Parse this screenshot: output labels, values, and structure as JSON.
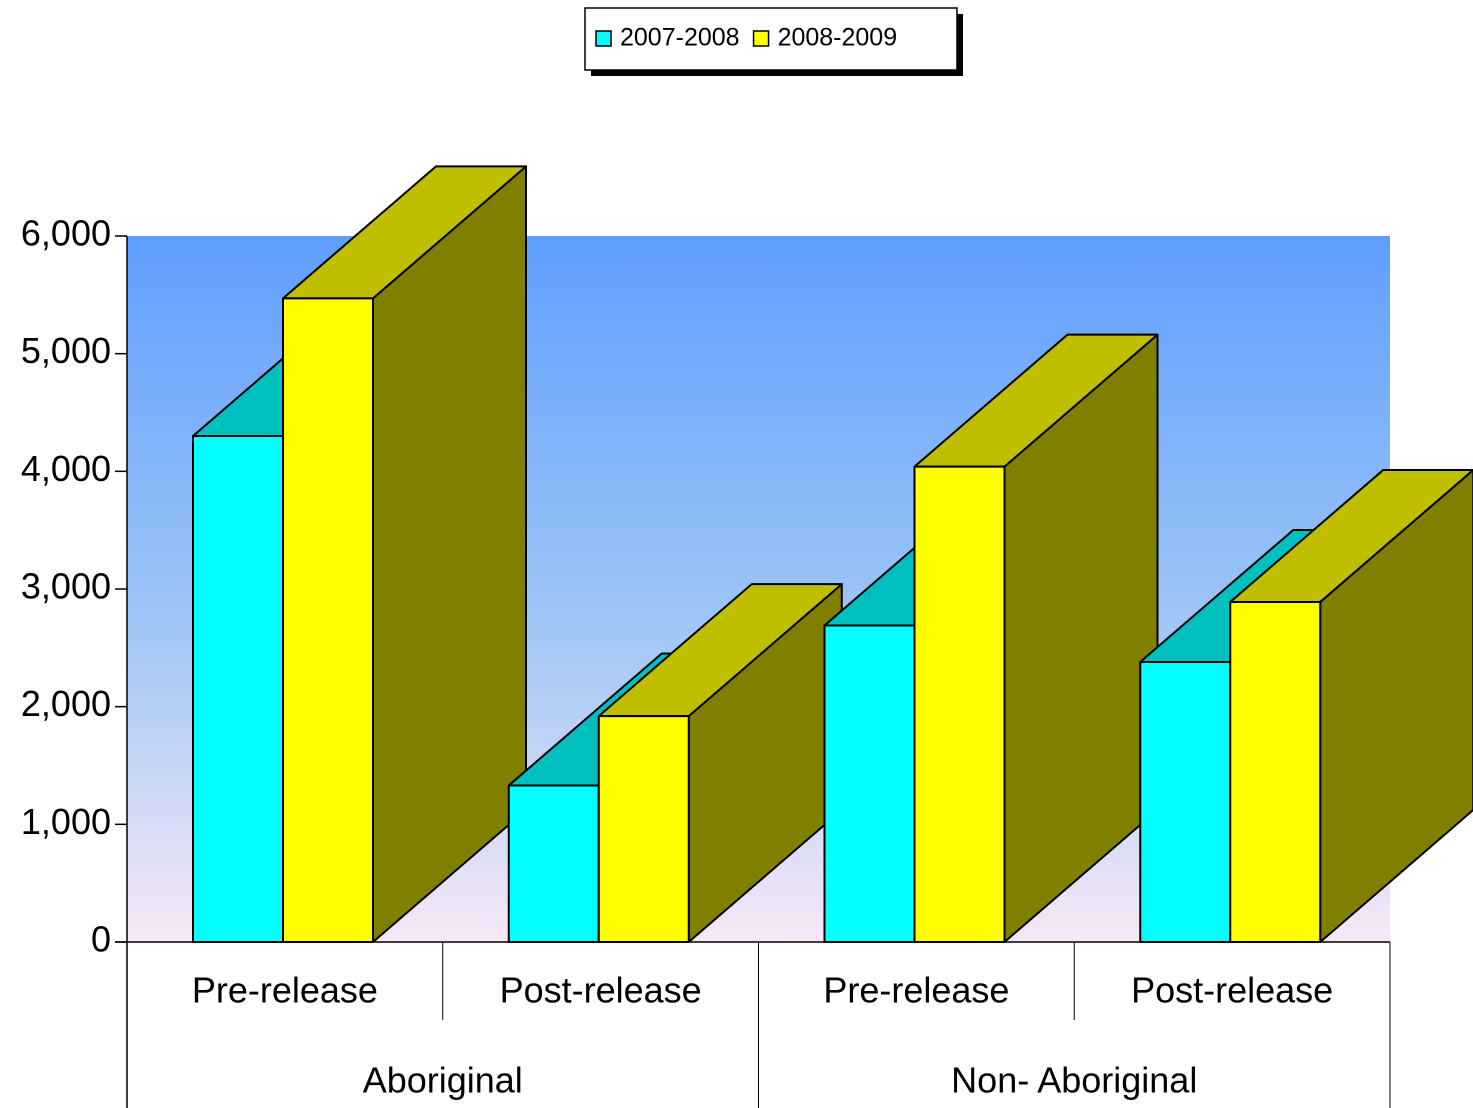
{
  "chart_data": {
    "type": "bar3d",
    "groups": [
      {
        "name": "Aboriginal",
        "categories": [
          "Pre-release",
          "Post-release"
        ]
      },
      {
        "name": "Non- Aboriginal",
        "categories": [
          "Pre-release",
          "Post-release"
        ]
      }
    ],
    "series": [
      {
        "name": "2007-2008",
        "color": "#00ffff",
        "values": [
          4300,
          1330,
          2690,
          2380
        ]
      },
      {
        "name": "2008-2009",
        "color": "#ffff00",
        "values": [
          5470,
          1920,
          4040,
          2890
        ]
      }
    ],
    "ylim": [
      0,
      6000
    ],
    "yticks": [
      {
        "value": 0,
        "label": "0"
      },
      {
        "value": 1000,
        "label": "1,000"
      },
      {
        "value": 2000,
        "label": "2,000"
      },
      {
        "value": 3000,
        "label": "3,000"
      },
      {
        "value": 4000,
        "label": "4,000"
      },
      {
        "value": 5000,
        "label": "5,000"
      },
      {
        "value": 6000,
        "label": "6,000"
      }
    ],
    "legend": "top"
  }
}
